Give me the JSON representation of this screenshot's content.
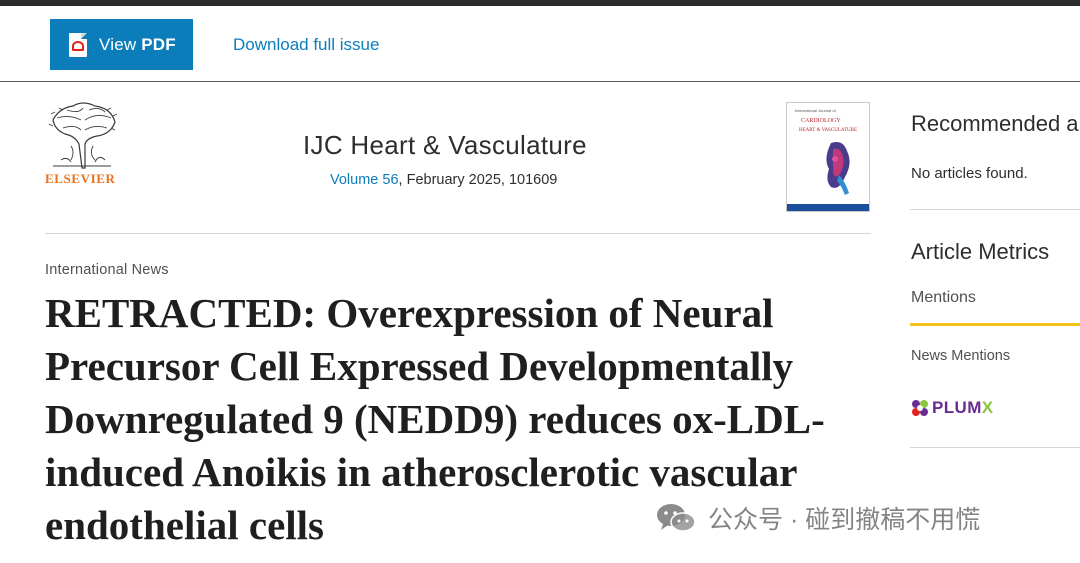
{
  "toolbar": {
    "view_pdf_prefix": "View ",
    "view_pdf_bold": "PDF",
    "download_label": "Download full issue"
  },
  "journal": {
    "publisher": "ELSEVIER",
    "title": "IJC Heart & Vasculature",
    "volume_link": "Volume 56",
    "issue_details": ", February 2025, 101609",
    "cover_label_top": "International Journal of",
    "cover_label_mid": "CARDIOLOGY",
    "cover_label_bottom": "HEART & VASCULATURE"
  },
  "article": {
    "type": "International News",
    "title": "RETRACTED: Overexpression of Neural Precursor Cell Expressed Developmentally Downregulated 9 (NEDD9) reduces ox-LDL-induced Anoikis in atherosclerotic vascular endothelial cells"
  },
  "sidebar": {
    "recommended_heading": "Recommended a",
    "recommended_empty": "No articles found.",
    "metrics_heading": "Article Metrics",
    "mentions_tab": "Mentions",
    "news_mentions": "News Mentions",
    "plumx_main": "PLUM",
    "plumx_x": "X"
  },
  "watermark": {
    "text": "公众号 · 碰到撤稿不用慌"
  },
  "colors": {
    "accent": "#0c7dbb",
    "publisher_orange": "#e9711c",
    "tab_underline": "#f5c21b",
    "plumx_purple": "#6a2c91",
    "plumx_green": "#8bc53f"
  }
}
